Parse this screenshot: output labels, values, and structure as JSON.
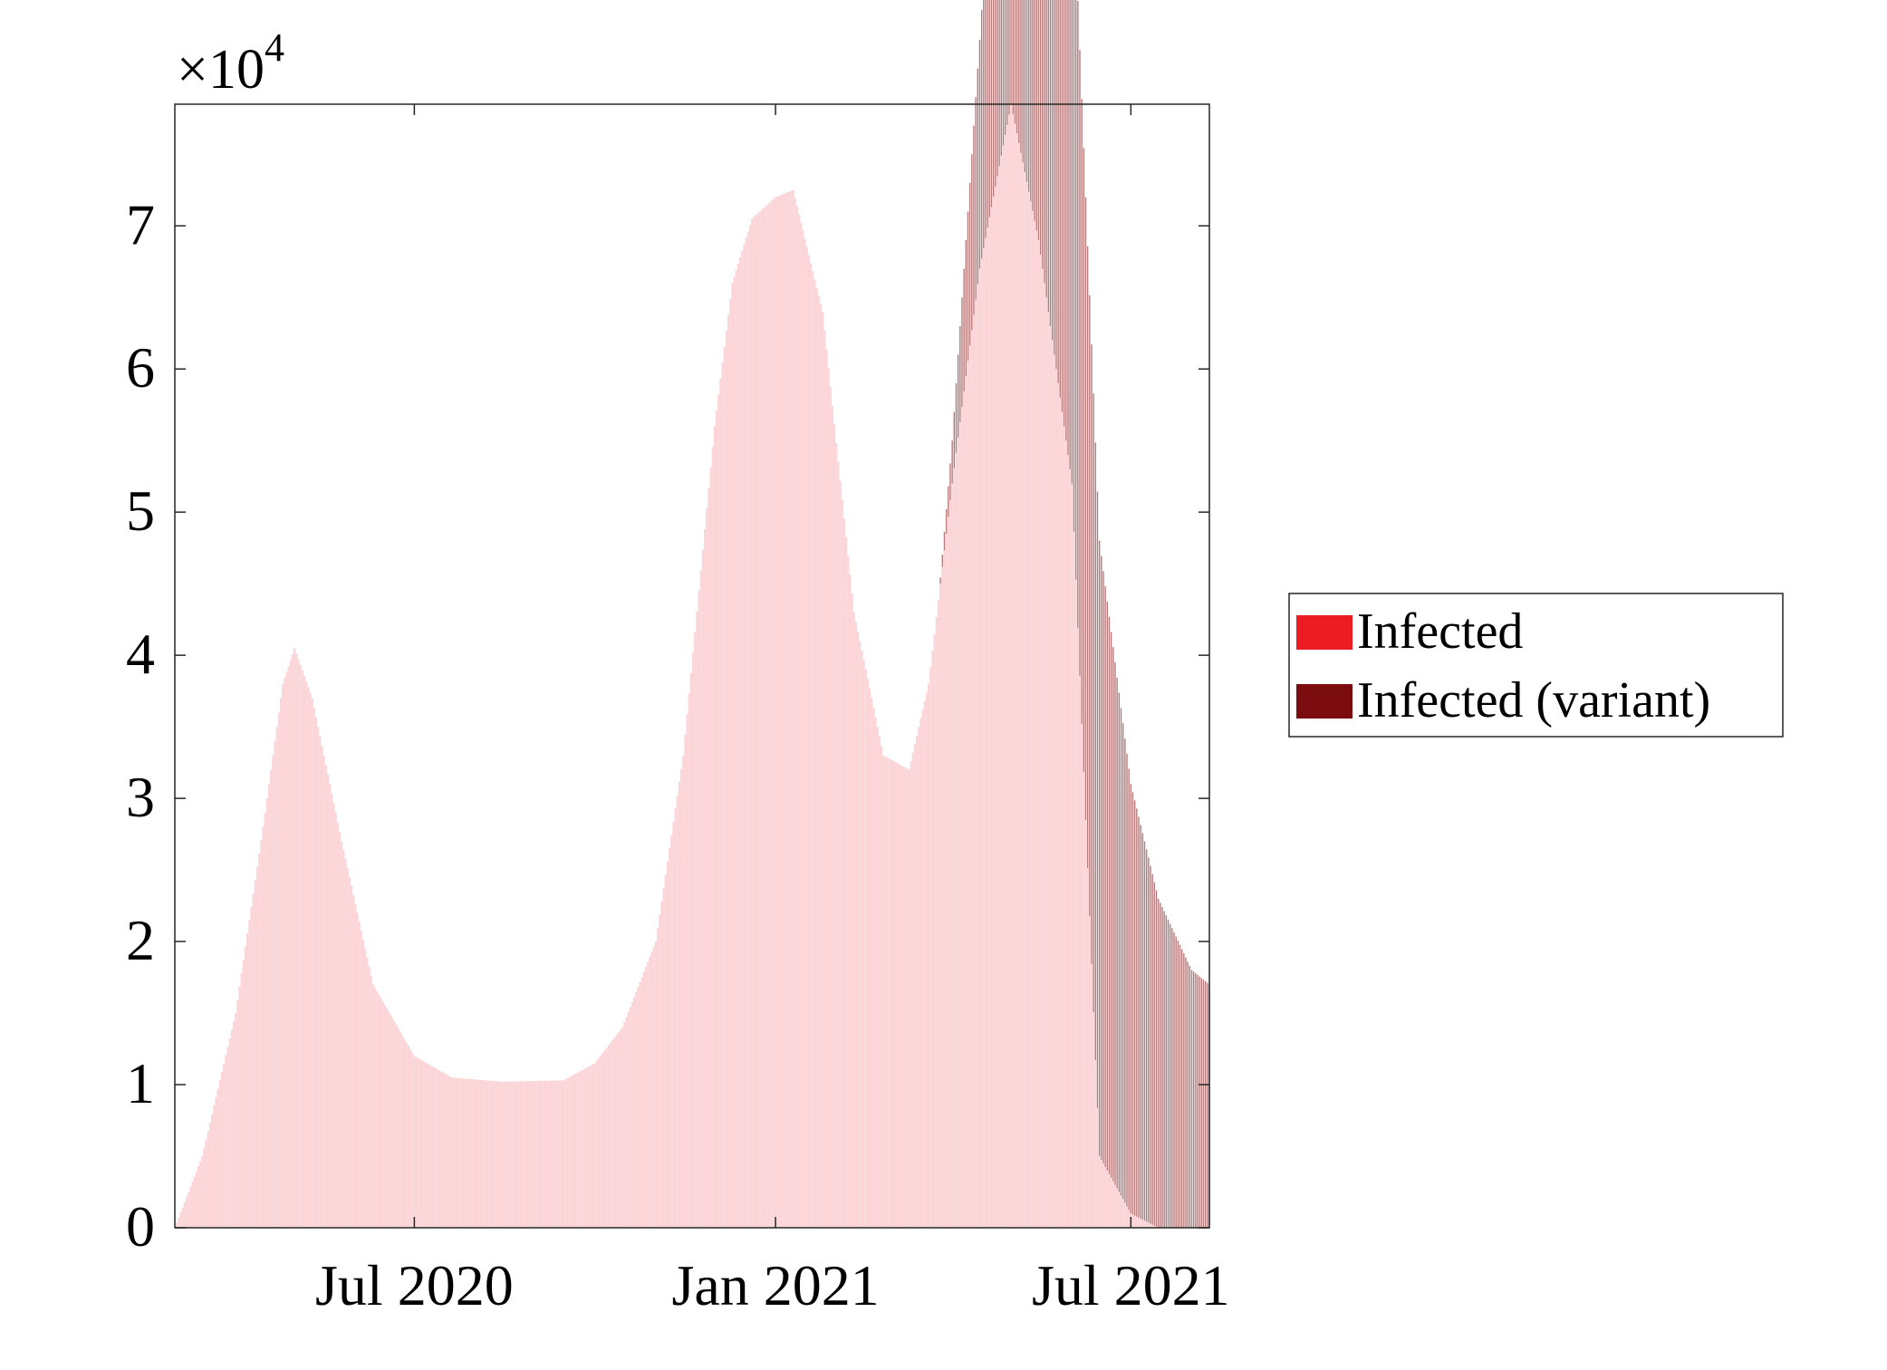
{
  "chart_data": {
    "type": "area",
    "title": "",
    "xlabel": "",
    "ylabel": "",
    "y_multiplier": "×10",
    "y_multiplier_exponent": "4",
    "ylim": [
      0,
      7.85
    ],
    "yticks": [
      "0",
      "1",
      "2",
      "3",
      "4",
      "5",
      "6",
      "7"
    ],
    "xlim": [
      "2020-03-01",
      "2021-08-10"
    ],
    "xticks": [
      {
        "date": "2020-07-01",
        "label": "Jul 2020"
      },
      {
        "date": "2021-01-01",
        "label": "Jan 2021"
      },
      {
        "date": "2021-07-01",
        "label": "Jul 2021"
      }
    ],
    "grid": false,
    "legend_position": "outside-right",
    "series": [
      {
        "name": "Infected",
        "color": "#ed1c24",
        "fill_color": "#fbd5d8",
        "points": [
          [
            "2020-03-01",
            0.0
          ],
          [
            "2020-03-15",
            0.5
          ],
          [
            "2020-04-01",
            1.5
          ],
          [
            "2020-04-15",
            2.8
          ],
          [
            "2020-04-25",
            3.8
          ],
          [
            "2020-05-01",
            4.05
          ],
          [
            "2020-05-10",
            3.7
          ],
          [
            "2020-05-25",
            2.7
          ],
          [
            "2020-06-10",
            1.7
          ],
          [
            "2020-07-01",
            1.2
          ],
          [
            "2020-07-20",
            1.05
          ],
          [
            "2020-08-15",
            1.02
          ],
          [
            "2020-09-15",
            1.03
          ],
          [
            "2020-10-01",
            1.15
          ],
          [
            "2020-10-15",
            1.4
          ],
          [
            "2020-11-01",
            2.0
          ],
          [
            "2020-11-15",
            3.3
          ],
          [
            "2020-12-01",
            5.6
          ],
          [
            "2020-12-10",
            6.6
          ],
          [
            "2020-12-20",
            7.05
          ],
          [
            "2021-01-01",
            7.2
          ],
          [
            "2021-01-10",
            7.25
          ],
          [
            "2021-01-25",
            6.4
          ],
          [
            "2021-02-10",
            4.3
          ],
          [
            "2021-02-25",
            3.3
          ],
          [
            "2021-03-10",
            3.2
          ],
          [
            "2021-03-20",
            3.8
          ],
          [
            "2021-04-01",
            5.2
          ],
          [
            "2021-04-15",
            6.7
          ],
          [
            "2021-05-01",
            7.85
          ],
          [
            "2021-05-15",
            6.9
          ],
          [
            "2021-06-01",
            5.2
          ],
          [
            "2021-06-15",
            0.5
          ],
          [
            "2021-07-01",
            0.1
          ],
          [
            "2021-07-15",
            0.0
          ],
          [
            "2021-08-10",
            0.0
          ]
        ]
      },
      {
        "name": "Infected (variant)",
        "color": "#7b0c0f",
        "fill_color": "#7b0c0f",
        "points": [
          [
            "2021-03-25",
            0.0
          ],
          [
            "2021-04-01",
            0.3
          ],
          [
            "2021-04-15",
            1.6
          ],
          [
            "2021-05-01",
            3.8
          ],
          [
            "2021-05-15",
            4.6
          ],
          [
            "2021-06-01",
            4.4
          ],
          [
            "2021-06-15",
            4.3
          ],
          [
            "2021-07-01",
            3.0
          ],
          [
            "2021-07-15",
            2.3
          ],
          [
            "2021-08-01",
            1.8
          ],
          [
            "2021-08-10",
            1.7
          ]
        ]
      }
    ]
  }
}
